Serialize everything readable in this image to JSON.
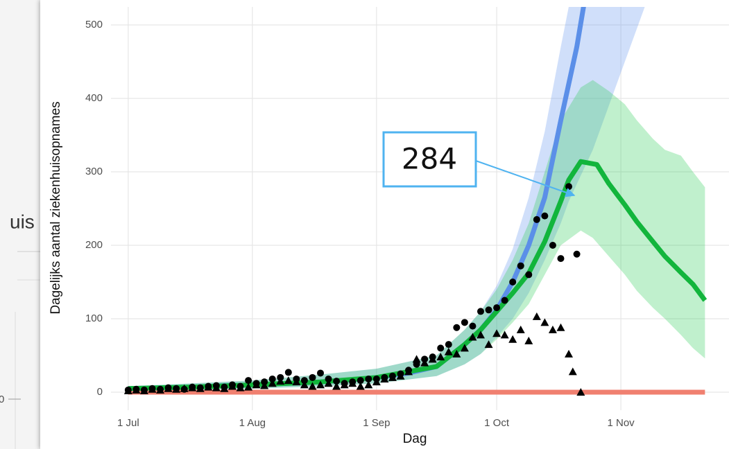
{
  "background": {
    "fragment_text": "uis",
    "tick_label": "0"
  },
  "annotation": {
    "text": "284"
  },
  "chart_data": {
    "type": "line",
    "y_label": "Dagelijks aantal ziekenhuisopnames",
    "x_label": "Dag",
    "xlim": [
      -4.3,
      150
    ],
    "xticks": [
      {
        "value": 0,
        "label": "1 Jul"
      },
      {
        "value": 31,
        "label": "1 Aug"
      },
      {
        "value": 62,
        "label": "1 Sep"
      },
      {
        "value": 92,
        "label": "1 Oct"
      },
      {
        "value": 123,
        "label": "1 Nov"
      }
    ],
    "ylim": [
      -24.5,
      524.5
    ],
    "yticks": [
      0,
      100,
      200,
      300,
      400,
      500
    ],
    "grid": true,
    "ribbons": [
      {
        "color": "#6495ed",
        "x": [
          0,
          16,
          31,
          48,
          62,
          77,
          84,
          88,
          92,
          96,
          100,
          104,
          108,
          110,
          116,
          122,
          129
        ],
        "lower": [
          1,
          3,
          5,
          8,
          12,
          22,
          38,
          52,
          75,
          100,
          135,
          180,
          230,
          260,
          330,
          420,
          525
        ],
        "upper": [
          8,
          12,
          16,
          24,
          32,
          50,
          85,
          110,
          145,
          195,
          265,
          355,
          470,
          525,
          640,
          760,
          880
        ]
      },
      {
        "color": "#2ecc5a",
        "x": [
          0,
          16,
          31,
          48,
          62,
          77,
          84,
          88,
          92,
          96,
          100,
          104,
          108,
          113,
          116,
          120,
          124,
          127,
          131,
          134,
          138,
          141,
          144
        ],
        "lower": [
          1,
          3,
          5,
          8,
          12,
          22,
          38,
          52,
          72,
          95,
          120,
          160,
          200,
          220,
          210,
          185,
          160,
          138,
          115,
          100,
          78,
          60,
          46
        ],
        "upper": [
          8,
          12,
          16,
          24,
          32,
          50,
          85,
          110,
          140,
          180,
          230,
          300,
          370,
          415,
          425,
          410,
          392,
          370,
          345,
          330,
          322,
          300,
          279
        ]
      }
    ],
    "series": [
      {
        "type": "line",
        "color": "#f08070",
        "x": [
          0,
          144
        ],
        "values": [
          0,
          0
        ]
      },
      {
        "type": "line",
        "color": "#5b8fe8",
        "x": [
          0,
          8,
          16,
          24,
          31,
          40,
          48,
          56,
          62,
          70,
          77,
          84,
          88,
          92,
          96,
          100,
          104,
          108,
          112,
          116
        ],
        "values": [
          5,
          6,
          7,
          9,
          10,
          12,
          14,
          17,
          20,
          26,
          35,
          65,
          85,
          112,
          150,
          200,
          265,
          370,
          470,
          600
        ]
      },
      {
        "type": "line",
        "color": "#12b53c",
        "x": [
          0,
          16,
          31,
          48,
          62,
          77,
          84,
          88,
          92,
          96,
          100,
          104,
          108,
          110,
          113,
          117,
          120,
          124,
          127,
          131,
          134,
          138,
          141,
          144
        ],
        "values": [
          5,
          7,
          10,
          14,
          20,
          35,
          65,
          85,
          110,
          135,
          162,
          205,
          260,
          289,
          314,
          310,
          284,
          255,
          232,
          205,
          185,
          163,
          147,
          125
        ]
      },
      {
        "type": "scatter",
        "marker": "circle",
        "color": "#000000",
        "x": [
          0,
          2,
          4,
          6,
          8,
          10,
          12,
          14,
          16,
          18,
          20,
          22,
          24,
          26,
          28,
          30,
          32,
          34,
          36,
          38,
          40,
          42,
          44,
          46,
          48,
          50,
          52,
          54,
          56,
          58,
          60,
          62,
          64,
          66,
          68,
          70,
          72,
          74,
          76,
          78,
          80,
          82,
          84,
          86,
          88,
          90,
          92,
          94,
          96,
          98,
          100,
          102,
          104,
          106,
          108,
          110,
          112
        ],
        "values": [
          3,
          4,
          3,
          5,
          4,
          6,
          5,
          4,
          7,
          6,
          8,
          9,
          7,
          10,
          8,
          16,
          12,
          14,
          18,
          20,
          27,
          18,
          16,
          20,
          26,
          18,
          15,
          12,
          14,
          16,
          18,
          18,
          20,
          22,
          25,
          30,
          38,
          45,
          48,
          60,
          65,
          88,
          95,
          90,
          110,
          112,
          115,
          125,
          150,
          172,
          160,
          235,
          240,
          200,
          182,
          280,
          188
        ]
      },
      {
        "type": "scatter",
        "marker": "triangle",
        "color": "#000000",
        "x": [
          0,
          2,
          4,
          6,
          8,
          10,
          12,
          14,
          16,
          18,
          20,
          22,
          24,
          26,
          28,
          30,
          32,
          34,
          36,
          38,
          40,
          42,
          44,
          46,
          48,
          50,
          52,
          54,
          56,
          58,
          60,
          62,
          64,
          66,
          68,
          70,
          72,
          74,
          76,
          78,
          80,
          82,
          84,
          86,
          88,
          90,
          92,
          94,
          96,
          98,
          100,
          102,
          104,
          106,
          108,
          110,
          111,
          113
        ],
        "values": [
          2,
          3,
          2,
          4,
          3,
          5,
          4,
          5,
          6,
          5,
          7,
          6,
          5,
          8,
          6,
          7,
          10,
          9,
          12,
          15,
          16,
          14,
          10,
          8,
          10,
          12,
          8,
          10,
          12,
          8,
          10,
          14,
          18,
          20,
          22,
          28,
          45,
          40,
          45,
          48,
          55,
          52,
          60,
          75,
          78,
          65,
          80,
          78,
          72,
          85,
          70,
          103,
          95,
          85,
          88,
          52,
          28,
          0
        ]
      }
    ]
  }
}
